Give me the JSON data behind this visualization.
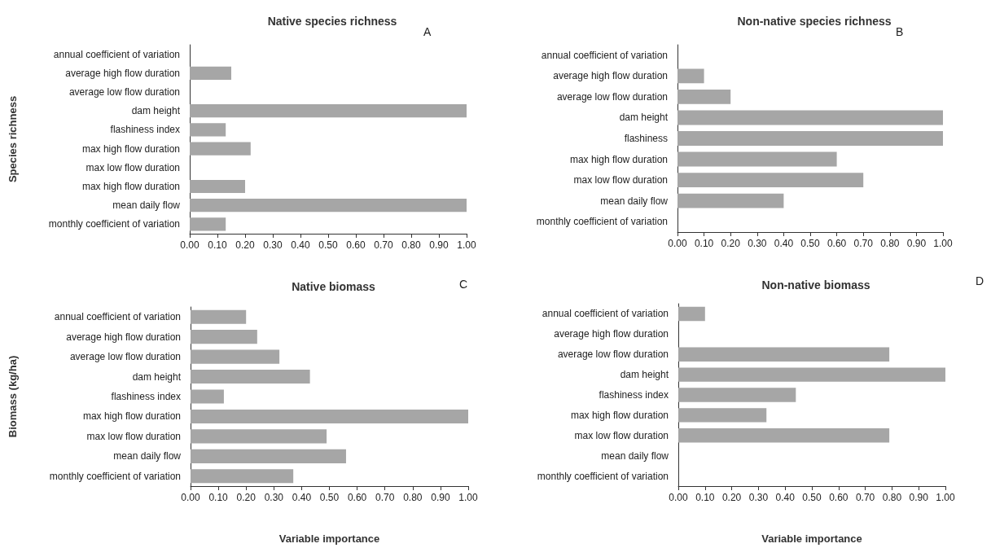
{
  "chart_data": [
    {
      "type": "bar",
      "orientation": "horizontal",
      "title": "Native species richness",
      "ylabel": "Species richness",
      "annotations": [
        "A"
      ],
      "categories": [
        "annual coefficient of variation",
        "average high flow duration",
        "average low flow duration",
        "dam height",
        "flashiness index",
        "max high flow duration",
        "max low flow duration",
        "max high flow duration",
        "mean daily flow",
        "monthly coefficient of variation"
      ],
      "values": [
        0,
        0.15,
        0,
        1.0,
        0.13,
        0.22,
        0,
        0.2,
        1.0,
        0.13
      ],
      "color": "#a6a6a6",
      "xlim": [
        0,
        1
      ],
      "xticks": [
        {
          "value": 0,
          "label": "0.00"
        },
        {
          "value": 0.1,
          "label": "0.10"
        },
        {
          "value": 0.2,
          "label": "0.20"
        },
        {
          "value": 0.3,
          "label": "0.30"
        },
        {
          "value": 0.4,
          "label": "0.40"
        },
        {
          "value": 0.5,
          "label": "0.50"
        },
        {
          "value": 0.6,
          "label": "0.60"
        },
        {
          "value": 0.7,
          "label": "0.70"
        },
        {
          "value": 0.8,
          "label": "0.80"
        },
        {
          "value": 0.9,
          "label": "0.90"
        },
        {
          "value": 1,
          "label": "1.00"
        }
      ],
      "grid": false
    },
    {
      "type": "bar",
      "orientation": "horizontal",
      "title": "Non-native species richness",
      "annotations": [
        "B"
      ],
      "categories": [
        "annual coefficient of variation",
        "average high flow duration",
        "average low flow duration",
        "dam height",
        "flashiness",
        "max high flow duration",
        "max low flow duration",
        "mean daily flow",
        "monthly coefficient of variation"
      ],
      "values": [
        0,
        0.1,
        0.2,
        1.0,
        1.0,
        0.6,
        0.7,
        0.4,
        0
      ],
      "color": "#a6a6a6",
      "xlim": [
        0,
        1
      ],
      "xticks": [
        {
          "value": 0,
          "label": "0.00"
        },
        {
          "value": 0.1,
          "label": "0.10"
        },
        {
          "value": 0.2,
          "label": "0.20"
        },
        {
          "value": 0.3,
          "label": "0.30"
        },
        {
          "value": 0.4,
          "label": "0.40"
        },
        {
          "value": 0.5,
          "label": "0.50"
        },
        {
          "value": 0.6,
          "label": "0.60"
        },
        {
          "value": 0.7,
          "label": "0.70"
        },
        {
          "value": 0.8,
          "label": "0.80"
        },
        {
          "value": 0.9,
          "label": "0.90"
        },
        {
          "value": 1,
          "label": "1.00"
        }
      ],
      "grid": false
    },
    {
      "type": "bar",
      "orientation": "horizontal",
      "title": "Native biomass",
      "ylabel": "Biomass (kg/ha)",
      "xlabel": "Variable importance",
      "annotations": [
        "C"
      ],
      "categories": [
        "annual coefficient of variation",
        "average high flow duration",
        "average low flow duration",
        "dam height",
        "flashiness index",
        "max high flow duration",
        "max low flow duration",
        "mean daily flow",
        "monthly coefficient of variation"
      ],
      "values": [
        0.2,
        0.24,
        0.32,
        0.43,
        0.12,
        1.0,
        0.49,
        0.56,
        0.37
      ],
      "color": "#a6a6a6",
      "xlim": [
        0,
        1
      ],
      "xticks": [
        {
          "value": 0,
          "label": "0.00"
        },
        {
          "value": 0.1,
          "label": "0.10"
        },
        {
          "value": 0.2,
          "label": "0.20"
        },
        {
          "value": 0.3,
          "label": "0.30"
        },
        {
          "value": 0.4,
          "label": "0.40"
        },
        {
          "value": 0.5,
          "label": "0.50"
        },
        {
          "value": 0.6,
          "label": "0.60"
        },
        {
          "value": 0.7,
          "label": "0.70"
        },
        {
          "value": 0.8,
          "label": "0.80"
        },
        {
          "value": 0.9,
          "label": "0.90"
        },
        {
          "value": 1,
          "label": "1.00"
        }
      ],
      "grid": false
    },
    {
      "type": "bar",
      "orientation": "horizontal",
      "title": "Non-native biomass",
      "xlabel": "Variable importance",
      "annotations": [
        "D"
      ],
      "categories": [
        "annual coefficient of variation",
        "average high flow duration",
        "average low flow duration",
        "dam height",
        "flashiness index",
        "max high flow duration",
        "max low flow duration",
        "mean daily flow",
        "monthly coefficient of variation"
      ],
      "values": [
        0.1,
        0,
        0.79,
        1.0,
        0.44,
        0.33,
        0.79,
        0,
        0
      ],
      "color": "#a6a6a6",
      "xlim": [
        0,
        1
      ],
      "xticks": [
        {
          "value": 0,
          "label": "0.00"
        },
        {
          "value": 0.1,
          "label": "0.10"
        },
        {
          "value": 0.2,
          "label": "0.20"
        },
        {
          "value": 0.3,
          "label": "0.30"
        },
        {
          "value": 0.4,
          "label": "0.40"
        },
        {
          "value": 0.5,
          "label": "0.50"
        },
        {
          "value": 0.6,
          "label": "0.60"
        },
        {
          "value": 0.7,
          "label": "0.70"
        },
        {
          "value": 0.8,
          "label": "0.80"
        },
        {
          "value": 0.9,
          "label": "0.90"
        },
        {
          "value": 1,
          "label": "1.00"
        }
      ],
      "grid": false
    }
  ]
}
